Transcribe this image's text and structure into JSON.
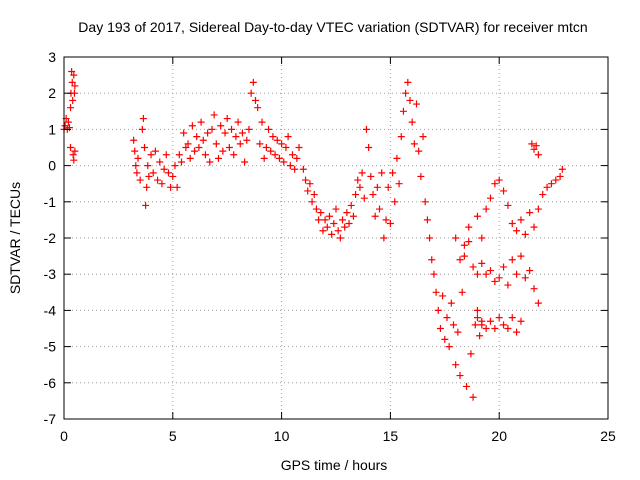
{
  "chart_data": {
    "type": "scatter",
    "title": "Day 193 of 2017, Sidereal Day-to-day VTEC variation (SDTVAR) for receiver mtcn",
    "xlabel": "GPS time / hours",
    "ylabel": "SDTVAR / TECUs",
    "xlim": [
      0,
      25
    ],
    "ylim": [
      -7,
      3
    ],
    "xticks": [
      "0",
      "5",
      "10",
      "15",
      "20",
      "25"
    ],
    "yticks": [
      "3",
      "2",
      "1",
      "0",
      "-1",
      "-2",
      "-3",
      "-4",
      "-5",
      "-6",
      "-7"
    ],
    "grid": true,
    "marker": "+",
    "color": "#ff0000",
    "series": [
      {
        "points": [
          [
            0.0,
            1.0
          ],
          [
            0.05,
            1.1
          ],
          [
            0.1,
            1.3
          ],
          [
            0.15,
            1.0
          ],
          [
            0.2,
            1.2
          ],
          [
            0.25,
            1.05
          ],
          [
            0.3,
            0.5
          ],
          [
            0.3,
            1.6
          ],
          [
            0.32,
            2.0
          ],
          [
            0.35,
            2.6
          ],
          [
            0.38,
            2.3
          ],
          [
            0.4,
            1.8
          ],
          [
            0.42,
            0.3
          ],
          [
            0.45,
            2.5
          ],
          [
            0.48,
            2.0
          ],
          [
            0.5,
            0.4
          ],
          [
            0.5,
            2.2
          ],
          [
            0.45,
            0.15
          ],
          [
            3.2,
            0.7
          ],
          [
            3.25,
            0.4
          ],
          [
            3.3,
            0.0
          ],
          [
            3.35,
            -0.2
          ],
          [
            3.4,
            0.2
          ],
          [
            3.5,
            -0.4
          ],
          [
            3.6,
            1.0
          ],
          [
            3.65,
            1.3
          ],
          [
            3.7,
            0.5
          ],
          [
            3.75,
            -1.1
          ],
          [
            3.8,
            -0.6
          ],
          [
            3.85,
            0.0
          ],
          [
            3.9,
            -0.3
          ],
          [
            4.0,
            0.3
          ],
          [
            4.1,
            -0.2
          ],
          [
            4.2,
            0.4
          ],
          [
            4.3,
            -0.4
          ],
          [
            4.4,
            0.1
          ],
          [
            4.5,
            -0.5
          ],
          [
            4.6,
            -0.1
          ],
          [
            4.7,
            0.3
          ],
          [
            4.8,
            -0.2
          ],
          [
            4.9,
            -0.6
          ],
          [
            5.0,
            -0.3
          ],
          [
            5.1,
            0.0
          ],
          [
            5.2,
            -0.6
          ],
          [
            5.3,
            0.3
          ],
          [
            5.4,
            0.1
          ],
          [
            5.5,
            0.9
          ],
          [
            5.6,
            0.5
          ],
          [
            5.7,
            0.6
          ],
          [
            5.8,
            0.2
          ],
          [
            5.9,
            1.1
          ],
          [
            6.0,
            0.4
          ],
          [
            6.1,
            0.8
          ],
          [
            6.2,
            0.5
          ],
          [
            6.3,
            1.2
          ],
          [
            6.4,
            0.7
          ],
          [
            6.5,
            0.3
          ],
          [
            6.6,
            0.9
          ],
          [
            6.7,
            0.1
          ],
          [
            6.8,
            1.0
          ],
          [
            6.9,
            1.4
          ],
          [
            7.0,
            0.6
          ],
          [
            7.1,
            0.2
          ],
          [
            7.2,
            1.1
          ],
          [
            7.3,
            0.4
          ],
          [
            7.4,
            0.9
          ],
          [
            7.5,
            1.3
          ],
          [
            7.6,
            0.5
          ],
          [
            7.7,
            1.0
          ],
          [
            7.8,
            0.3
          ],
          [
            7.9,
            0.8
          ],
          [
            8.0,
            1.2
          ],
          [
            8.1,
            0.6
          ],
          [
            8.2,
            0.9
          ],
          [
            8.3,
            0.1
          ],
          [
            8.4,
            0.7
          ],
          [
            8.5,
            1.0
          ],
          [
            8.6,
            2.0
          ],
          [
            8.7,
            2.3
          ],
          [
            8.8,
            1.8
          ],
          [
            8.9,
            1.6
          ],
          [
            9.0,
            0.6
          ],
          [
            9.1,
            1.2
          ],
          [
            9.2,
            0.2
          ],
          [
            9.3,
            0.5
          ],
          [
            9.4,
            1.0
          ],
          [
            9.5,
            0.4
          ],
          [
            9.6,
            0.8
          ],
          [
            9.7,
            0.3
          ],
          [
            9.8,
            0.7
          ],
          [
            9.9,
            0.2
          ],
          [
            10.0,
            0.6
          ],
          [
            10.1,
            0.1
          ],
          [
            10.2,
            0.5
          ],
          [
            10.3,
            0.8
          ],
          [
            10.4,
            0.0
          ],
          [
            10.5,
            0.3
          ],
          [
            10.6,
            -0.1
          ],
          [
            10.7,
            0.2
          ],
          [
            10.8,
            0.5
          ],
          [
            11.0,
            -0.1
          ],
          [
            11.1,
            -0.4
          ],
          [
            11.2,
            -0.7
          ],
          [
            11.3,
            -0.5
          ],
          [
            11.4,
            -1.0
          ],
          [
            11.5,
            -0.8
          ],
          [
            11.6,
            -1.2
          ],
          [
            11.7,
            -1.5
          ],
          [
            11.8,
            -1.3
          ],
          [
            11.9,
            -1.8
          ],
          [
            12.0,
            -1.5
          ],
          [
            12.1,
            -1.7
          ],
          [
            12.2,
            -1.4
          ],
          [
            12.3,
            -1.9
          ],
          [
            12.4,
            -1.6
          ],
          [
            12.5,
            -1.2
          ],
          [
            12.6,
            -1.8
          ],
          [
            12.7,
            -2.0
          ],
          [
            12.8,
            -1.5
          ],
          [
            12.9,
            -1.7
          ],
          [
            13.0,
            -1.3
          ],
          [
            13.1,
            -1.6
          ],
          [
            13.2,
            -1.1
          ],
          [
            13.3,
            -1.4
          ],
          [
            13.4,
            -0.8
          ],
          [
            13.5,
            -0.4
          ],
          [
            13.6,
            -0.6
          ],
          [
            13.7,
            -0.2
          ],
          [
            13.8,
            -0.9
          ],
          [
            13.9,
            1.0
          ],
          [
            14.0,
            0.5
          ],
          [
            14.1,
            -0.3
          ],
          [
            14.2,
            -0.8
          ],
          [
            14.3,
            -1.4
          ],
          [
            14.4,
            -0.6
          ],
          [
            14.5,
            -1.2
          ],
          [
            14.6,
            -0.2
          ],
          [
            14.7,
            -2.0
          ],
          [
            14.8,
            -1.5
          ],
          [
            14.9,
            -0.6
          ],
          [
            15.0,
            -1.6
          ],
          [
            15.1,
            -0.2
          ],
          [
            15.2,
            -1.0
          ],
          [
            15.3,
            0.2
          ],
          [
            15.4,
            -0.5
          ],
          [
            15.5,
            0.8
          ],
          [
            15.6,
            1.5
          ],
          [
            15.7,
            2.0
          ],
          [
            15.8,
            2.3
          ],
          [
            15.9,
            1.8
          ],
          [
            16.0,
            1.2
          ],
          [
            16.1,
            0.6
          ],
          [
            16.2,
            1.7
          ],
          [
            16.3,
            0.4
          ],
          [
            16.4,
            -0.3
          ],
          [
            16.5,
            0.8
          ],
          [
            16.6,
            -1.0
          ],
          [
            16.7,
            -1.5
          ],
          [
            16.8,
            -2.0
          ],
          [
            16.9,
            -2.6
          ],
          [
            17.0,
            -3.0
          ],
          [
            17.1,
            -3.5
          ],
          [
            17.2,
            -4.0
          ],
          [
            17.3,
            -4.5
          ],
          [
            17.4,
            -3.6
          ],
          [
            17.5,
            -4.8
          ],
          [
            17.6,
            -4.2
          ],
          [
            17.7,
            -5.0
          ],
          [
            17.8,
            -3.8
          ],
          [
            17.9,
            -4.4
          ],
          [
            18.0,
            -5.5
          ],
          [
            18.1,
            -4.6
          ],
          [
            18.2,
            -5.8
          ],
          [
            18.3,
            -3.5
          ],
          [
            18.4,
            -2.5
          ],
          [
            18.5,
            -6.1
          ],
          [
            18.6,
            -2.1
          ],
          [
            18.7,
            -5.2
          ],
          [
            18.8,
            -6.4
          ],
          [
            18.9,
            -4.4
          ],
          [
            19.0,
            -4.0
          ],
          [
            19.1,
            -4.7
          ],
          [
            19.2,
            -4.3
          ],
          [
            18.0,
            -2.0
          ],
          [
            18.2,
            -2.6
          ],
          [
            18.4,
            -2.2
          ],
          [
            18.6,
            -1.7
          ],
          [
            18.8,
            -2.8
          ],
          [
            19.0,
            -1.4
          ],
          [
            19.2,
            -2.0
          ],
          [
            19.4,
            -1.2
          ],
          [
            19.6,
            -0.9
          ],
          [
            19.8,
            -0.5
          ],
          [
            20.0,
            -0.4
          ],
          [
            20.2,
            -0.7
          ],
          [
            20.4,
            -1.1
          ],
          [
            20.6,
            -1.6
          ],
          [
            20.8,
            -1.8
          ],
          [
            21.0,
            -1.5
          ],
          [
            21.2,
            -1.9
          ],
          [
            21.4,
            -1.3
          ],
          [
            21.6,
            -1.7
          ],
          [
            21.8,
            -1.2
          ],
          [
            22.0,
            -0.8
          ],
          [
            22.2,
            -0.6
          ],
          [
            22.4,
            -0.5
          ],
          [
            22.6,
            -0.4
          ],
          [
            22.8,
            -0.3
          ],
          [
            22.9,
            -0.1
          ],
          [
            19.0,
            -3.0
          ],
          [
            19.2,
            -2.7
          ],
          [
            19.4,
            -3.0
          ],
          [
            19.6,
            -2.9
          ],
          [
            19.8,
            -3.2
          ],
          [
            20.0,
            -3.1
          ],
          [
            20.2,
            -2.8
          ],
          [
            20.4,
            -3.3
          ],
          [
            20.6,
            -2.6
          ],
          [
            20.8,
            -3.0
          ],
          [
            21.0,
            -2.5
          ],
          [
            21.2,
            -3.1
          ],
          [
            21.4,
            -2.9
          ],
          [
            21.6,
            -3.4
          ],
          [
            21.8,
            -3.8
          ],
          [
            19.0,
            -4.2
          ],
          [
            19.2,
            -4.4
          ],
          [
            19.4,
            -4.5
          ],
          [
            19.6,
            -4.3
          ],
          [
            19.8,
            -4.5
          ],
          [
            20.0,
            -4.2
          ],
          [
            20.2,
            -4.4
          ],
          [
            20.4,
            -4.5
          ],
          [
            20.6,
            -4.2
          ],
          [
            20.8,
            -4.6
          ],
          [
            21.0,
            -4.3
          ],
          [
            21.5,
            0.6
          ],
          [
            21.6,
            0.45
          ],
          [
            21.7,
            0.55
          ],
          [
            21.8,
            0.3
          ]
        ]
      }
    ]
  }
}
